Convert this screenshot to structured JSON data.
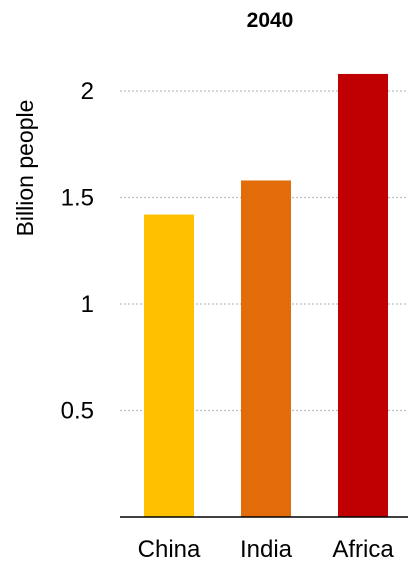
{
  "chart_data": {
    "type": "bar",
    "title": "2040",
    "xlabel": "",
    "ylabel": "Billion people",
    "categories": [
      "China",
      "India",
      "Africa"
    ],
    "values": [
      1.42,
      1.58,
      2.08
    ],
    "colors": [
      "#FFC000",
      "#E36C0A",
      "#C00000"
    ],
    "ylim": [
      0,
      2.2
    ],
    "yticks": [
      0.5,
      1,
      1.5,
      2
    ],
    "ytick_labels": [
      "0.5",
      "1",
      "1.5",
      "2"
    ],
    "grid": true,
    "legend": "none"
  }
}
